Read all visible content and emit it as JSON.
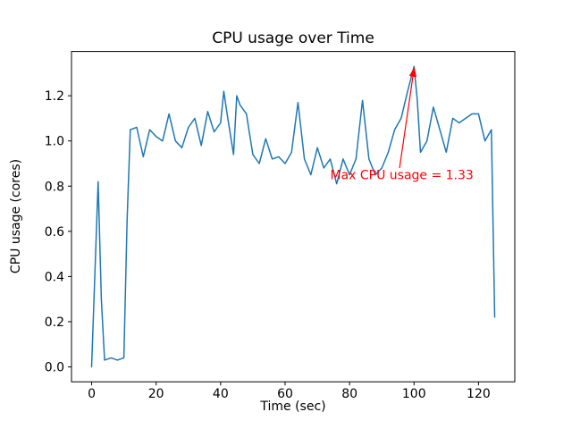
{
  "chart_data": {
    "type": "line",
    "title": "CPU usage over Time",
    "xlabel": "Time (sec)",
    "ylabel": "CPU usage (cores)",
    "xlim": [
      -6.25,
      131.25
    ],
    "ylim": [
      -0.066,
      1.396
    ],
    "xticks": [
      0,
      20,
      40,
      60,
      80,
      100,
      120
    ],
    "yticks": [
      0.0,
      0.2,
      0.4,
      0.6,
      0.8,
      1.0,
      1.2
    ],
    "grid": false,
    "legend": null,
    "line_color": "#1f77b4",
    "x": [
      0,
      2,
      3,
      4,
      6,
      8,
      10,
      11,
      12,
      14,
      16,
      18,
      20,
      22,
      24,
      26,
      28,
      30,
      32,
      34,
      36,
      38,
      40,
      41,
      42,
      44,
      45,
      46,
      48,
      50,
      52,
      54,
      56,
      58,
      60,
      62,
      64,
      66,
      68,
      70,
      72,
      74,
      76,
      78,
      80,
      82,
      84,
      86,
      88,
      90,
      92,
      94,
      96,
      98,
      100,
      101,
      102,
      104,
      106,
      108,
      110,
      112,
      114,
      116,
      118,
      120,
      122,
      124,
      125
    ],
    "y": [
      0.0,
      0.82,
      0.3,
      0.03,
      0.04,
      0.03,
      0.04,
      0.65,
      1.05,
      1.06,
      0.93,
      1.05,
      1.02,
      1.0,
      1.12,
      1.0,
      0.97,
      1.06,
      1.1,
      0.98,
      1.13,
      1.04,
      1.08,
      1.22,
      1.12,
      0.94,
      1.2,
      1.16,
      1.12,
      0.94,
      0.9,
      1.01,
      0.92,
      0.93,
      0.9,
      0.95,
      1.17,
      0.92,
      0.85,
      0.97,
      0.88,
      0.92,
      0.81,
      0.92,
      0.85,
      0.92,
      1.18,
      0.92,
      0.85,
      0.88,
      0.95,
      1.05,
      1.1,
      1.22,
      1.33,
      1.18,
      0.95,
      1.0,
      1.15,
      1.05,
      0.95,
      1.1,
      1.08,
      1.1,
      1.12,
      1.12,
      1.0,
      1.05,
      0.22
    ],
    "annotation": {
      "text": "Max CPU usage = 1.33",
      "color": "#ff0000",
      "text_x": 74,
      "text_y": 0.83,
      "arrow": {
        "x1": 95.5,
        "y1": 0.88,
        "x2": 100,
        "y2": 1.32
      }
    }
  }
}
